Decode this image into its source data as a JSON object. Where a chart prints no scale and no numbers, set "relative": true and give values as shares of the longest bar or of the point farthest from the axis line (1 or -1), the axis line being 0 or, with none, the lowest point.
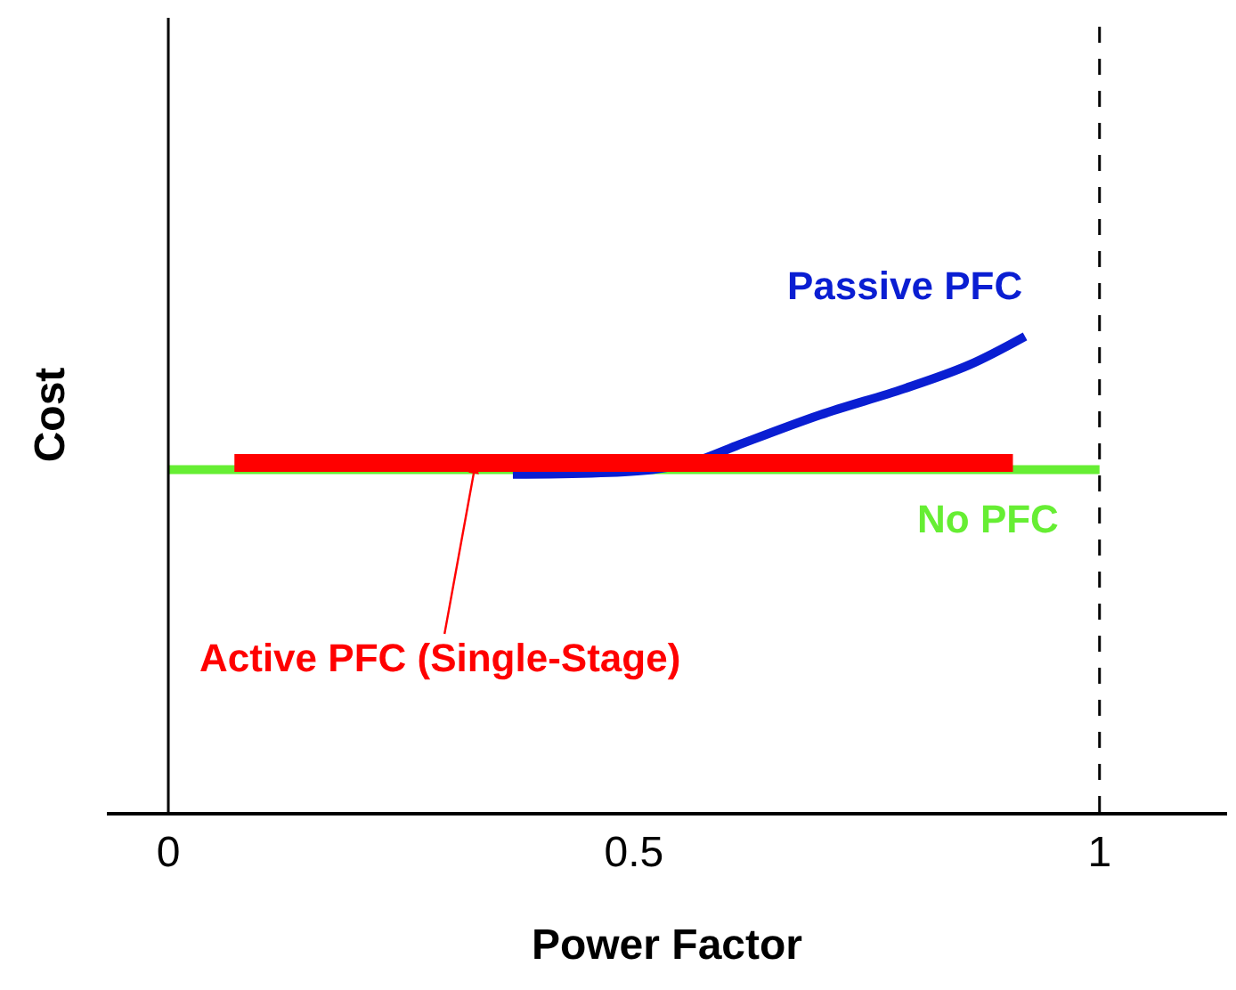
{
  "chart_data": {
    "type": "line",
    "xlabel": "Power Factor",
    "ylabel": "Cost",
    "relative": true,
    "xlim": [
      -0.066,
      1.137
    ],
    "xticks": [
      0,
      0.5,
      1
    ],
    "legend": false,
    "marker": "none",
    "line_style": "solid",
    "ref_lines": [
      {
        "axis": "x",
        "value": 1,
        "color": "#000000",
        "line_style": "dashed"
      }
    ],
    "series": [
      {
        "name": "No PFC",
        "color": "#66ee33",
        "x": [
          0,
          1
        ],
        "values": [
          0.72,
          0.72
        ]
      },
      {
        "name": "Passive PFC",
        "color": "#0a1ed2",
        "x": [
          0.37,
          0.52,
          0.57,
          0.61,
          0.7,
          0.79,
          0.86,
          0.92
        ],
        "values": [
          0.71,
          0.72,
          0.74,
          0.77,
          0.835,
          0.89,
          0.94,
          1.0
        ]
      },
      {
        "name": "Active PFC (Single-Stage)",
        "color": "#ff0000",
        "x": [
          0.071,
          0.907
        ],
        "values": [
          0.734,
          0.734
        ]
      }
    ]
  }
}
